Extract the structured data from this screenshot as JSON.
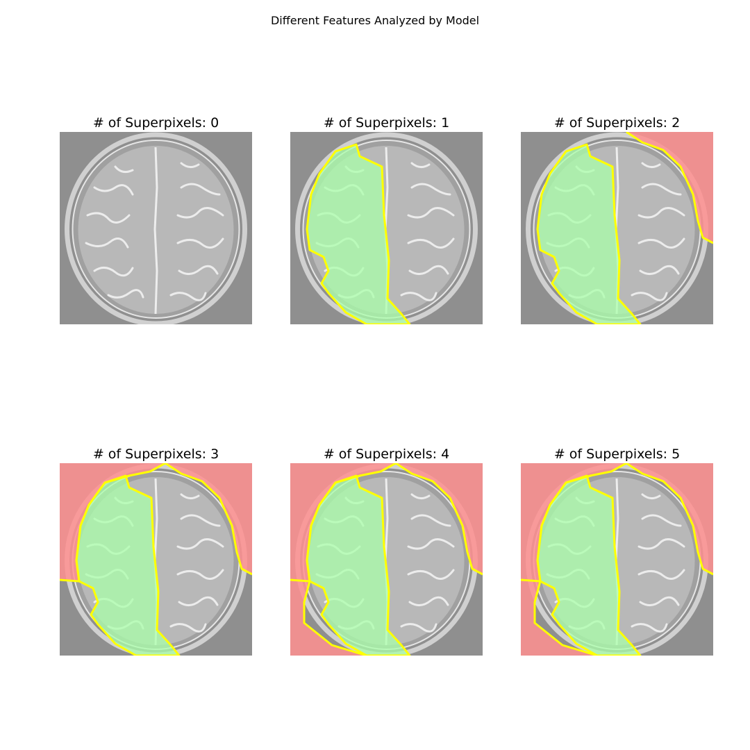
{
  "figure": {
    "title": "Different Features Analyzed by Model"
  },
  "panels": [
    {
      "title": "# of Superpixels: 0",
      "superpixels": 0
    },
    {
      "title": "# of Superpixels: 1",
      "superpixels": 1
    },
    {
      "title": "# of Superpixels: 2",
      "superpixels": 2
    },
    {
      "title": "# of Superpixels: 3",
      "superpixels": 3
    },
    {
      "title": "# of Superpixels: 4",
      "superpixels": 4
    },
    {
      "title": "# of Superpixels: 5",
      "superpixels": 5
    }
  ],
  "colors": {
    "background_gray": "#8f8f8f",
    "positive_region": "#aaffaa",
    "negative_region": "#ff9090",
    "boundary": "#ffff00",
    "brain": "#b8b8b8",
    "sulci": "#f2f2f2",
    "skull": "#d0d0d0"
  }
}
